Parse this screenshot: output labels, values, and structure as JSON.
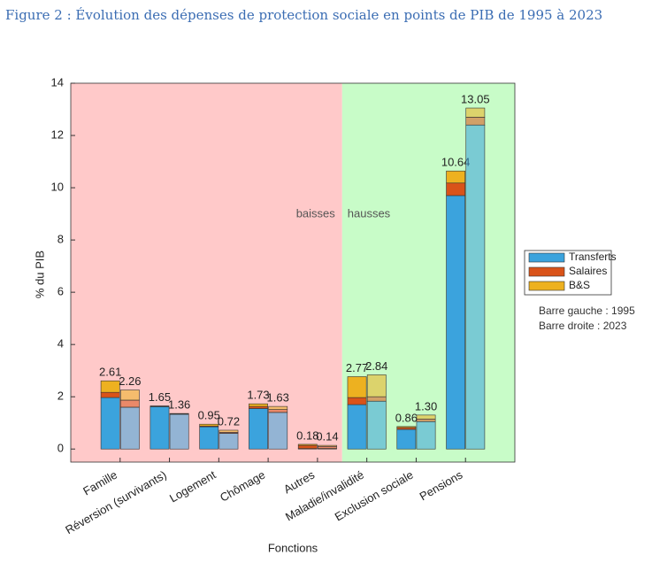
{
  "chart_data": {
    "type": "stacked-bar-pairs",
    "title": "Figure 2 : Évolution des dépenses de protection sociale en points de PIB de 1995 à 2023",
    "y_label": "% du PIB",
    "x_label": "Fonctions",
    "regions": [
      {
        "label": "baisses",
        "color": "#ffc9c9",
        "categories": [
          "Famille",
          "Réversion (survivants)",
          "Logement",
          "Chômage",
          "Autres"
        ]
      },
      {
        "label": "hausses",
        "color": "#c8fcc8",
        "categories": [
          "Maladie/invalidité",
          "Exclusion sociale",
          "Pensions"
        ]
      }
    ],
    "series": [
      {
        "name": "Transferts",
        "color": "#3ba3dd",
        "values": [
          [
            1.97,
            1.6
          ],
          [
            1.62,
            1.33
          ],
          [
            0.85,
            0.6
          ],
          [
            1.55,
            1.4
          ],
          [
            0.02,
            0.02
          ],
          [
            1.7,
            1.83
          ],
          [
            0.75,
            1.05
          ],
          [
            9.7,
            12.4
          ]
        ]
      },
      {
        "name": "Salaires",
        "color": "#d95319",
        "values": [
          [
            0.2,
            0.27
          ],
          [
            0.01,
            0.01
          ],
          [
            0.03,
            0.04
          ],
          [
            0.08,
            0.11
          ],
          [
            0.12,
            0.08
          ],
          [
            0.27,
            0.17
          ],
          [
            0.07,
            0.1
          ],
          [
            0.48,
            0.3
          ]
        ]
      },
      {
        "name": "B&S",
        "color": "#edb120",
        "values": [
          [
            0.44,
            0.39
          ],
          [
            0.02,
            0.02
          ],
          [
            0.07,
            0.08
          ],
          [
            0.1,
            0.12
          ],
          [
            0.04,
            0.04
          ],
          [
            0.8,
            0.84
          ],
          [
            0.04,
            0.15
          ],
          [
            0.46,
            0.35
          ]
        ]
      }
    ],
    "totals": [
      [
        2.61,
        2.26
      ],
      [
        1.65,
        1.36
      ],
      [
        0.95,
        0.72
      ],
      [
        1.73,
        1.63
      ],
      [
        0.18,
        0.14
      ],
      [
        2.77,
        2.84
      ],
      [
        0.86,
        1.3
      ],
      [
        10.64,
        13.05
      ]
    ],
    "total_labels": [
      [
        "2.61",
        "2.26"
      ],
      [
        "1.65",
        "1.36"
      ],
      [
        "0.95",
        "0.72"
      ],
      [
        "1.73",
        "1.63"
      ],
      [
        "0.18",
        "0.14"
      ],
      [
        "2.77",
        "2.84"
      ],
      [
        "0.86",
        "1.30"
      ],
      [
        "10.64",
        "13.05"
      ]
    ],
    "notes": [
      "Barre gauche : 1995",
      "Barre droite : 2023"
    ],
    "ylim": [
      -0.5,
      14
    ],
    "yticks": [
      0,
      2,
      4,
      6,
      8,
      10,
      12,
      14
    ]
  }
}
